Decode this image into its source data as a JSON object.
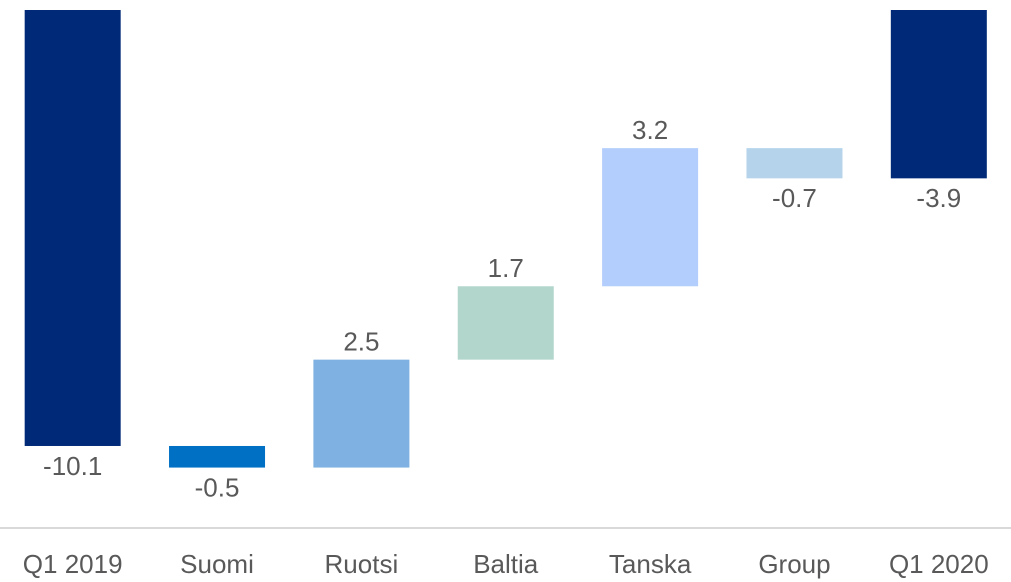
{
  "chart_data": {
    "type": "waterfall",
    "categories": [
      "Q1 2019",
      "Suomi",
      "Ruotsi",
      "Baltia",
      "Tanska",
      "Group",
      "Q1 2020"
    ],
    "values": [
      -10.1,
      -0.5,
      2.5,
      1.7,
      3.2,
      -0.7,
      -3.9
    ],
    "totals": [
      true,
      false,
      false,
      false,
      false,
      false,
      true
    ],
    "colors": [
      "#002a77",
      "#0070c5",
      "#7fb2e2",
      "#b2d5cc",
      "#b3cdfd",
      "#b5d4ec",
      "#002a77"
    ],
    "ylim": [
      -12,
      0
    ]
  }
}
